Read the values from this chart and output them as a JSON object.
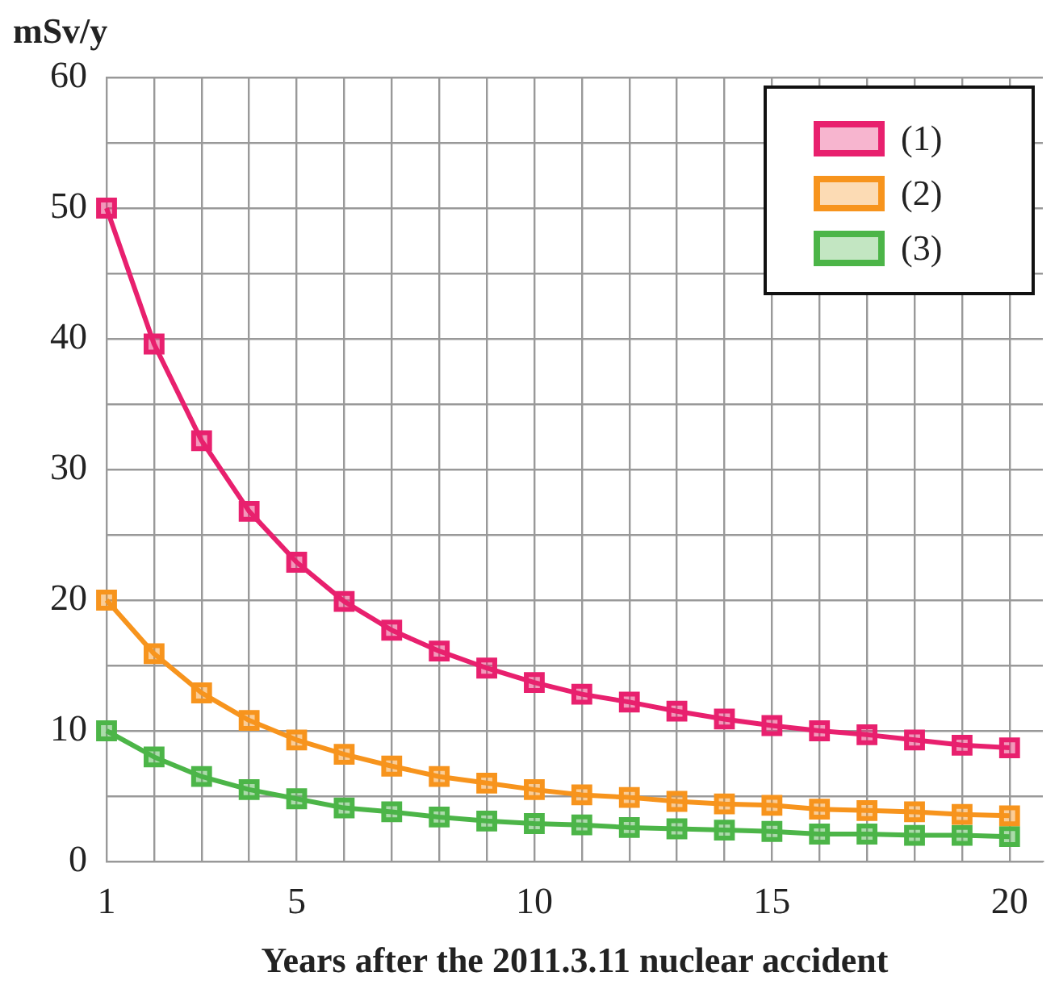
{
  "chart_data": {
    "type": "line",
    "ylabel": "mSv/y",
    "xlabel": "Years after the 2011.3.11 nuclear accident",
    "x": [
      1,
      2,
      3,
      4,
      5,
      6,
      7,
      8,
      9,
      10,
      11,
      12,
      13,
      14,
      15,
      16,
      17,
      18,
      19,
      20
    ],
    "series": [
      {
        "name": "(1)",
        "color": "#e8206e",
        "values": [
          50,
          39.6,
          32.2,
          26.8,
          22.9,
          19.9,
          17.7,
          16.1,
          14.8,
          13.7,
          12.8,
          12.2,
          11.5,
          10.9,
          10.4,
          10.0,
          9.7,
          9.3,
          8.9,
          8.7
        ]
      },
      {
        "name": "(2)",
        "color": "#f7941d",
        "values": [
          20,
          15.9,
          12.9,
          10.8,
          9.3,
          8.2,
          7.3,
          6.5,
          6.0,
          5.5,
          5.1,
          4.9,
          4.6,
          4.4,
          4.3,
          4.0,
          3.9,
          3.8,
          3.6,
          3.5
        ]
      },
      {
        "name": "(3)",
        "color": "#4cb548",
        "values": [
          10,
          8.0,
          6.5,
          5.5,
          4.8,
          4.1,
          3.8,
          3.4,
          3.1,
          2.9,
          2.8,
          2.6,
          2.5,
          2.4,
          2.3,
          2.1,
          2.1,
          2.0,
          2.0,
          1.9
        ]
      }
    ],
    "xlim": [
      1,
      20.7
    ],
    "xticks": [
      1,
      {
        "value": 2,
        "label": null
      },
      {
        "value": 3,
        "label": null
      },
      {
        "value": 4,
        "label": null
      },
      5,
      {
        "value": 6,
        "label": null
      },
      {
        "value": 7,
        "label": null
      },
      {
        "value": 8,
        "label": null
      },
      {
        "value": 9,
        "label": null
      },
      10,
      {
        "value": 11,
        "label": null
      },
      {
        "value": 12,
        "label": null
      },
      {
        "value": 13,
        "label": null
      },
      {
        "value": 14,
        "label": null
      },
      15,
      {
        "value": 16,
        "label": null
      },
      {
        "value": 17,
        "label": null
      },
      {
        "value": 18,
        "label": null
      },
      {
        "value": 19,
        "label": null
      },
      20
    ],
    "ylim": [
      0,
      60
    ],
    "yticks": [
      0,
      {
        "value": 5,
        "label": null
      },
      10,
      {
        "value": 15,
        "label": null
      },
      20,
      {
        "value": 25,
        "label": null
      },
      30,
      {
        "value": 35,
        "label": null
      },
      40,
      {
        "value": 45,
        "label": null
      },
      50,
      {
        "value": 55,
        "label": null
      },
      60
    ],
    "grid": true,
    "legend": "top right",
    "marker": "square",
    "line_style": "solid"
  }
}
